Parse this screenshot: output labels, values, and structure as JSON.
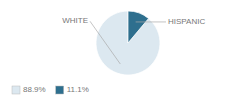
{
  "chart_data": {
    "type": "pie",
    "categories": [
      "WHITE",
      "HISPANIC"
    ],
    "values": [
      88.9,
      11.1
    ],
    "value_labels": [
      "88.9%",
      "11.1%"
    ],
    "colors": [
      "#dce8f0",
      "#2e6f8e"
    ],
    "legend": "bottom"
  }
}
